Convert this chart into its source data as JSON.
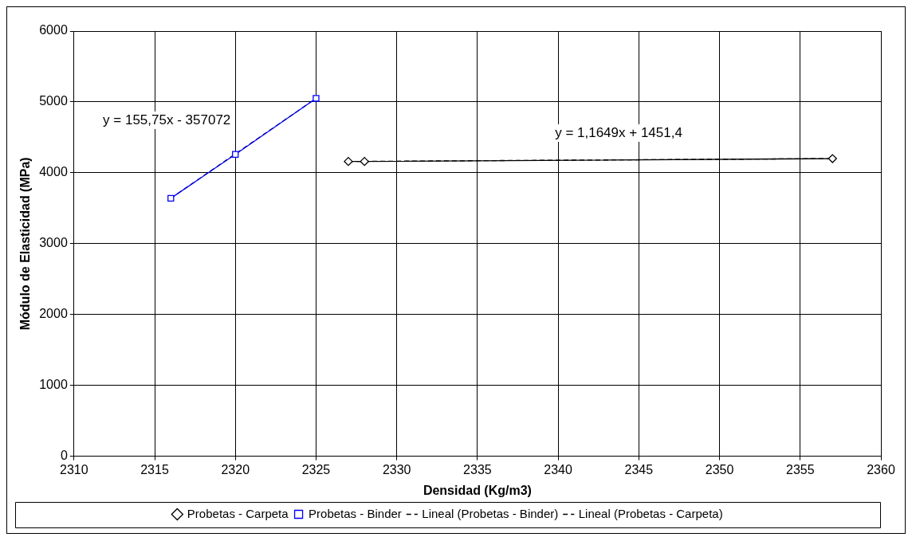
{
  "chart_data": {
    "type": "line",
    "xlabel": "Densidad (Kg/m3)",
    "ylabel": "Módulo de Elasticidad (MPa)",
    "xlim": [
      2310,
      2360
    ],
    "xticks": [
      2310,
      2315,
      2320,
      2325,
      2330,
      2335,
      2340,
      2345,
      2350,
      2355,
      2360
    ],
    "ylim": [
      0,
      6000
    ],
    "yticks": [
      0,
      1000,
      2000,
      3000,
      4000,
      5000,
      6000
    ],
    "grid": true,
    "legend": "bottom",
    "series": [
      {
        "name": "Probetas - Carpeta",
        "color": "#000000",
        "x": [
          2327,
          2328,
          2357
        ],
        "values": [
          4160,
          4160,
          4200
        ],
        "marker": "diamond",
        "line_style": "solid"
      },
      {
        "name": "Probetas - Binder",
        "color": "#0000ff",
        "x": [
          2316,
          2320,
          2325
        ],
        "values": [
          3640,
          4260,
          5050
        ],
        "marker": "square",
        "line_style": "solid"
      },
      {
        "name": "Lineal (Probetas - Binder)",
        "color": "#000000",
        "x": [
          2316,
          2325
        ],
        "values": [
          3640,
          5050
        ],
        "marker": "none",
        "line_style": "dashed"
      },
      {
        "name": "Lineal (Probetas - Carpeta)",
        "color": "#000000",
        "x": [
          2327,
          2357
        ],
        "values": [
          4160,
          4200
        ],
        "marker": "none",
        "line_style": "dashed"
      }
    ],
    "annotations": [
      "y = 155,75x - 357072",
      "y = 1,1649x + 1451,4"
    ]
  }
}
